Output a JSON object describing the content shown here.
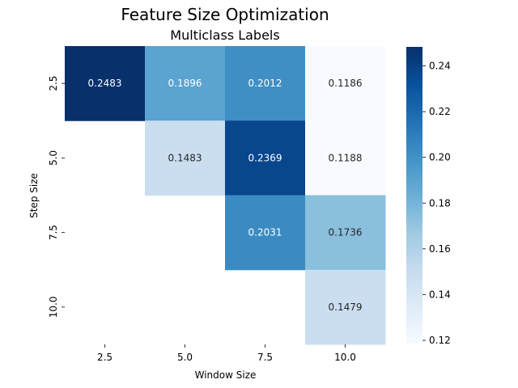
{
  "chart_data": {
    "type": "heatmap",
    "title": "Feature Size Optimization",
    "subtitle": "Multiclass Labels",
    "xlabel": "Window Size",
    "ylabel": "Step Size",
    "x_categories": [
      "2.5",
      "5.0",
      "7.5",
      "10.0"
    ],
    "y_categories": [
      "2.5",
      "5.0",
      "7.5",
      "10.0"
    ],
    "values": [
      [
        0.2483,
        0.1896,
        0.2012,
        0.1186
      ],
      [
        null,
        0.1483,
        0.2369,
        0.1188
      ],
      [
        null,
        null,
        0.2031,
        0.1736
      ],
      [
        null,
        null,
        null,
        0.1479
      ]
    ],
    "colormap": "Blues",
    "colorbar": {
      "vmin": 0.1186,
      "vmax": 0.2483,
      "ticks": [
        "0.12",
        "0.14",
        "0.16",
        "0.18",
        "0.20",
        "0.22",
        "0.24"
      ]
    }
  }
}
